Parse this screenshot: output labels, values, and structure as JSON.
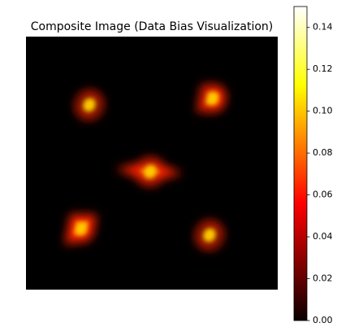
{
  "chart_data": {
    "type": "image",
    "title": "Composite Image (Data Bias Visualization)",
    "colormap": "hot",
    "clim": [
      0,
      0.15
    ],
    "cticks": [
      {
        "value": 0,
        "label": "0.00"
      },
      {
        "value": 0.02,
        "label": "0.02"
      },
      {
        "value": 0.04,
        "label": "0.04"
      },
      {
        "value": 0.06,
        "label": "0.06"
      },
      {
        "value": 0.08,
        "label": "0.08"
      },
      {
        "value": 0.1,
        "label": "0.10"
      },
      {
        "value": 0.12,
        "label": "0.12"
      },
      {
        "value": 0.14,
        "label": "0.14"
      }
    ]
  }
}
